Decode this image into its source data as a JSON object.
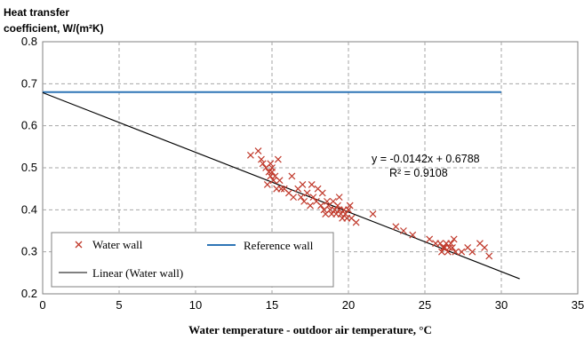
{
  "chart_data": {
    "type": "scatter",
    "title": "",
    "ylabel": [
      "Heat transfer",
      "coefficient,  W/(m²K)"
    ],
    "xlabel": "Water temperature - outdoor air temperature, °C",
    "xlim": [
      0,
      35
    ],
    "ylim": [
      0.2,
      0.8
    ],
    "x_ticks": [
      "0",
      "5",
      "10",
      "15",
      "20",
      "25",
      "30",
      "35"
    ],
    "y_ticks": [
      "0.2",
      "0.3",
      "0.4",
      "0.5",
      "0.6",
      "0.7",
      "0.8"
    ],
    "grid": "dashed",
    "legend_position": "bottom-left",
    "series": [
      {
        "name": "Water wall",
        "kind": "scatter",
        "marker": "x",
        "color": "#c0392b",
        "x": [
          13.6,
          14.1,
          14.3,
          14.4,
          14.6,
          14.8,
          14.9,
          15.0,
          15.1,
          15.2,
          14.7,
          15.0,
          15.3,
          15.5,
          15.8,
          16.1,
          16.4,
          16.7,
          16.9,
          17.1,
          17.3,
          17.5,
          17.7,
          17.9,
          18.0,
          18.2,
          18.4,
          18.6,
          18.7,
          18.8,
          18.9,
          19.0,
          19.1,
          19.2,
          19.3,
          19.4,
          19.5,
          19.6,
          19.7,
          19.8,
          19.9,
          20.0,
          20.2,
          20.5,
          21.6,
          23.1,
          23.6,
          24.2,
          25.3,
          25.7,
          26.0,
          26.2,
          26.3,
          26.4,
          26.5,
          26.6,
          26.7,
          26.8,
          27.0,
          27.4,
          27.8,
          28.1,
          28.6,
          28.9,
          29.2,
          15.4,
          16.3,
          17.6,
          18.3,
          19.4,
          20.1,
          26.1,
          26.9,
          14.9,
          15.6,
          17.0,
          18.5
        ],
        "y": [
          0.53,
          0.54,
          0.52,
          0.51,
          0.5,
          0.49,
          0.48,
          0.49,
          0.47,
          0.48,
          0.46,
          0.5,
          0.45,
          0.47,
          0.45,
          0.44,
          0.43,
          0.45,
          0.43,
          0.42,
          0.44,
          0.41,
          0.43,
          0.42,
          0.45,
          0.41,
          0.4,
          0.42,
          0.41,
          0.4,
          0.39,
          0.42,
          0.4,
          0.39,
          0.41,
          0.4,
          0.39,
          0.38,
          0.4,
          0.39,
          0.38,
          0.4,
          0.38,
          0.37,
          0.39,
          0.36,
          0.35,
          0.34,
          0.33,
          0.32,
          0.32,
          0.31,
          0.31,
          0.32,
          0.3,
          0.31,
          0.32,
          0.31,
          0.3,
          0.3,
          0.31,
          0.3,
          0.32,
          0.31,
          0.29,
          0.52,
          0.48,
          0.46,
          0.44,
          0.43,
          0.41,
          0.3,
          0.33,
          0.51,
          0.45,
          0.46,
          0.39
        ]
      },
      {
        "name": "Reference wall",
        "kind": "line",
        "color": "#2e75b6",
        "x": [
          0,
          30
        ],
        "y": [
          0.68,
          0.68
        ]
      },
      {
        "name": "Linear (Water wall)",
        "kind": "line",
        "color": "#000000",
        "x": [
          0,
          31.2
        ],
        "y": [
          0.6788,
          0.2358
        ]
      }
    ],
    "annotations": [
      "y = -0.0142x + 0.6788",
      "R² = 0.9108"
    ]
  }
}
